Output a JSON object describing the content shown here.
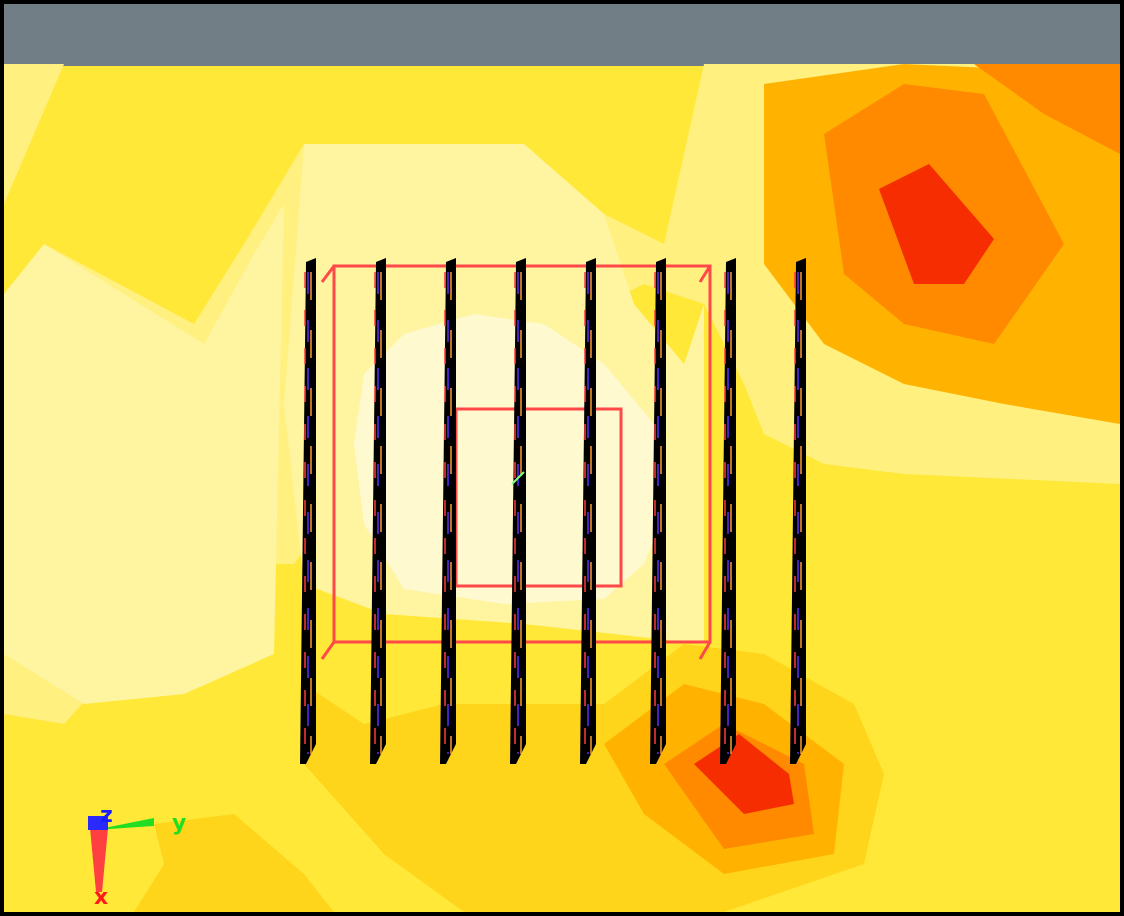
{
  "viewport": {
    "toolbar_color": "#717e86",
    "frame_color": "#000000"
  },
  "contour": {
    "palette": [
      "#fff9d0",
      "#fff4a0",
      "#fff080",
      "#ffe838",
      "#ffd51c",
      "#ffb300",
      "#ff8a00",
      "#f52d00"
    ]
  },
  "heat_sink": {
    "fin_count": 8,
    "fin_color": "#000000",
    "fin_highlight_colors": [
      "#ff3a3a",
      "#5a2cff",
      "#ff9a2a"
    ],
    "outline_color": "#ff4848",
    "center_marker_color": "#7dff7d"
  },
  "axes": {
    "z_label": "z",
    "y_label": "y",
    "x_label": "x",
    "z_color": "#1a1aff",
    "y_color": "#22dd22",
    "x_color": "#ff1a1a"
  }
}
